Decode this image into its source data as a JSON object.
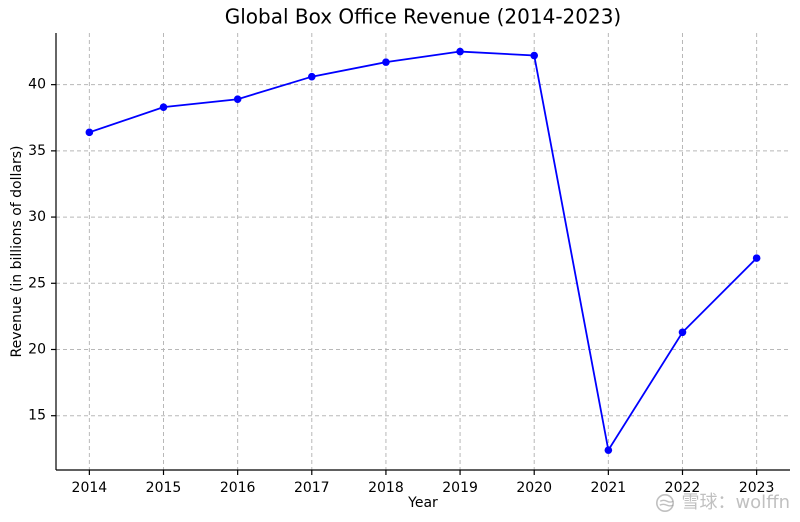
{
  "chart_data": {
    "type": "line",
    "title": "Global Box Office Revenue (2014-2023)",
    "xlabel": "Year",
    "ylabel": "Revenue (in billions of dollars)",
    "x": [
      2014,
      2015,
      2016,
      2017,
      2018,
      2019,
      2020,
      2021,
      2022,
      2023
    ],
    "y": [
      36.4,
      38.3,
      38.9,
      40.6,
      41.7,
      42.5,
      42.2,
      12.4,
      21.3,
      26.9
    ],
    "xticks": [
      "2014",
      "2015",
      "2016",
      "2017",
      "2018",
      "2019",
      "2020",
      "2021",
      "2022",
      "2023"
    ],
    "yticks": [
      "15",
      "20",
      "25",
      "30",
      "35",
      "40"
    ],
    "xlim": [
      2013.55,
      2023.45
    ],
    "ylim": [
      10.9,
      43.9
    ],
    "grid": true,
    "color": "#0000ff"
  },
  "watermark": {
    "text": "雪球：wolffn"
  }
}
